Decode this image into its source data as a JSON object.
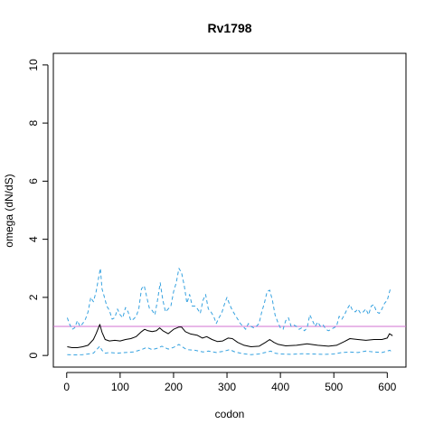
{
  "chart_data": {
    "type": "line",
    "title": "Rv1798",
    "xlabel": "codon",
    "ylabel": "omega (dN/dS)",
    "xlim": [
      -25,
      635
    ],
    "ylim": [
      -0.4,
      10.4
    ],
    "x_ticks": [
      0,
      100,
      200,
      300,
      400,
      500,
      600
    ],
    "y_ticks": [
      0,
      2,
      4,
      6,
      8,
      10
    ],
    "x_tick_labels": [
      "0",
      "100",
      "200",
      "300",
      "400",
      "500",
      "600"
    ],
    "y_tick_labels": [
      "0",
      "2",
      "4",
      "6",
      "8",
      "10"
    ],
    "grid": false,
    "legend": "none",
    "reference_line": {
      "y": 1,
      "color": "#d070d0"
    },
    "series": [
      {
        "role": "estimate",
        "color": "#000000",
        "style": "solid",
        "x": [
          1,
          10,
          20,
          30,
          40,
          50,
          55,
          62,
          66,
          72,
          80,
          90,
          100,
          110,
          120,
          130,
          140,
          146,
          152,
          160,
          168,
          174,
          180,
          190,
          200,
          210,
          215,
          222,
          232,
          244,
          254,
          262,
          272,
          282,
          292,
          302,
          310,
          320,
          332,
          345,
          360,
          372,
          380,
          388,
          396,
          410,
          430,
          450,
          470,
          490,
          505,
          520,
          530,
          545,
          560,
          575,
          590,
          600,
          604,
          610
        ],
        "y": [
          0.3,
          0.27,
          0.27,
          0.3,
          0.35,
          0.55,
          0.75,
          1.07,
          0.8,
          0.55,
          0.5,
          0.52,
          0.5,
          0.55,
          0.58,
          0.65,
          0.82,
          0.9,
          0.85,
          0.82,
          0.85,
          0.95,
          0.85,
          0.75,
          0.9,
          0.98,
          0.98,
          0.82,
          0.74,
          0.7,
          0.6,
          0.65,
          0.55,
          0.48,
          0.5,
          0.6,
          0.58,
          0.45,
          0.35,
          0.3,
          0.32,
          0.45,
          0.55,
          0.45,
          0.38,
          0.33,
          0.35,
          0.4,
          0.35,
          0.32,
          0.35,
          0.48,
          0.58,
          0.55,
          0.52,
          0.55,
          0.55,
          0.6,
          0.75,
          0.68
        ]
      },
      {
        "role": "upper bound",
        "color": "#36a2e0",
        "style": "dashed",
        "x": [
          1,
          5,
          10,
          15,
          20,
          25,
          30,
          35,
          40,
          45,
          50,
          55,
          60,
          63,
          66,
          70,
          75,
          80,
          85,
          90,
          95,
          100,
          105,
          110,
          115,
          120,
          125,
          130,
          135,
          140,
          145,
          150,
          155,
          160,
          165,
          170,
          175,
          180,
          185,
          190,
          195,
          200,
          205,
          210,
          215,
          220,
          225,
          230,
          235,
          240,
          245,
          250,
          255,
          260,
          265,
          270,
          275,
          280,
          285,
          290,
          295,
          300,
          305,
          310,
          315,
          320,
          325,
          330,
          335,
          340,
          345,
          350,
          355,
          360,
          365,
          370,
          375,
          380,
          385,
          390,
          395,
          400,
          405,
          410,
          415,
          420,
          425,
          430,
          435,
          440,
          445,
          450,
          455,
          460,
          465,
          470,
          475,
          480,
          485,
          490,
          495,
          500,
          505,
          510,
          515,
          520,
          525,
          530,
          535,
          540,
          545,
          550,
          555,
          560,
          565,
          570,
          575,
          580,
          585,
          590,
          595,
          600,
          605,
          610
        ],
        "y": [
          1.3,
          1.1,
          0.9,
          0.95,
          1.2,
          1.0,
          1.1,
          1.25,
          1.5,
          2.0,
          1.85,
          2.2,
          2.7,
          3.0,
          2.3,
          2.05,
          1.7,
          1.55,
          1.25,
          1.3,
          1.6,
          1.4,
          1.3,
          1.65,
          1.5,
          1.2,
          1.25,
          1.35,
          1.6,
          2.3,
          2.4,
          2.0,
          1.6,
          1.55,
          1.4,
          1.9,
          2.5,
          1.9,
          1.5,
          1.6,
          1.7,
          2.2,
          2.5,
          3.0,
          2.85,
          2.4,
          1.8,
          2.1,
          1.7,
          1.7,
          1.6,
          1.45,
          1.9,
          2.1,
          1.6,
          1.5,
          1.35,
          1.1,
          1.3,
          1.45,
          1.75,
          2.0,
          1.75,
          1.55,
          1.4,
          1.25,
          1.1,
          1.0,
          0.9,
          1.1,
          1.0,
          0.95,
          1.0,
          1.1,
          1.5,
          1.8,
          2.2,
          2.25,
          1.9,
          1.4,
          1.15,
          0.95,
          0.9,
          1.2,
          1.3,
          1.0,
          1.05,
          1.0,
          0.9,
          0.95,
          0.85,
          0.95,
          1.4,
          1.2,
          1.0,
          1.15,
          1.0,
          1.05,
          0.9,
          0.85,
          0.9,
          0.95,
          1.0,
          1.35,
          1.25,
          1.4,
          1.6,
          1.75,
          1.55,
          1.5,
          1.6,
          1.45,
          1.5,
          1.6,
          1.4,
          1.7,
          1.75,
          1.5,
          1.45,
          1.6,
          1.8,
          1.9,
          2.25,
          2.3
        ]
      },
      {
        "role": "lower bound",
        "color": "#36a2e0",
        "style": "dashed",
        "x": [
          1,
          10,
          20,
          30,
          40,
          50,
          56,
          62,
          66,
          72,
          80,
          95,
          110,
          125,
          140,
          150,
          160,
          170,
          178,
          190,
          200,
          210,
          216,
          225,
          240,
          255,
          265,
          280,
          295,
          305,
          315,
          330,
          345,
          360,
          375,
          382,
          390,
          400,
          420,
          440,
          460,
          480,
          500,
          515,
          530,
          545,
          560,
          575,
          590,
          600,
          605,
          610
        ],
        "y": [
          0.03,
          0.02,
          0.02,
          0.03,
          0.05,
          0.08,
          0.2,
          0.32,
          0.18,
          0.08,
          0.1,
          0.08,
          0.1,
          0.12,
          0.2,
          0.28,
          0.2,
          0.25,
          0.32,
          0.22,
          0.28,
          0.38,
          0.3,
          0.2,
          0.18,
          0.12,
          0.15,
          0.1,
          0.15,
          0.2,
          0.12,
          0.06,
          0.03,
          0.05,
          0.12,
          0.15,
          0.08,
          0.05,
          0.04,
          0.06,
          0.05,
          0.04,
          0.05,
          0.1,
          0.12,
          0.1,
          0.15,
          0.12,
          0.1,
          0.15,
          0.18,
          0.08
        ]
      }
    ]
  }
}
